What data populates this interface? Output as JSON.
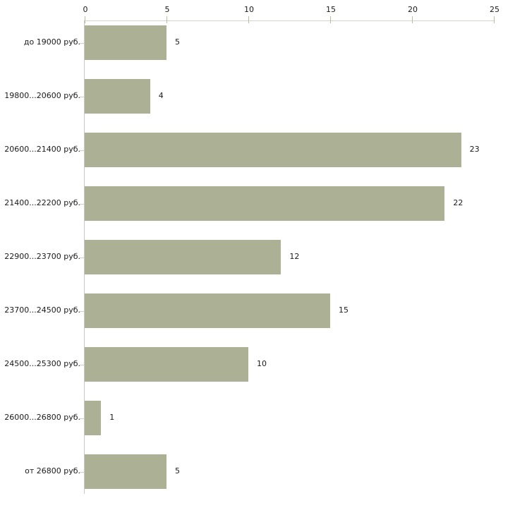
{
  "chart_data": {
    "type": "bar",
    "orientation": "horizontal",
    "title": "",
    "xlabel": "",
    "ylabel": "",
    "categories": [
      "до 19000 руб.",
      "19800...20600 руб.",
      "20600...21400 руб.",
      "21400...22200 руб.",
      "22900...23700 руб.",
      "23700...24500 руб.",
      "24500...25300 руб.",
      "26000...26800 руб.",
      "от 26800 руб."
    ],
    "values": [
      5,
      4,
      23,
      22,
      12,
      15,
      10,
      1,
      5
    ],
    "value_labels": [
      "5",
      "4",
      "23",
      "22",
      "12",
      "15",
      "10",
      "1",
      "5"
    ],
    "x_ticks": [
      "0",
      "5",
      "10",
      "15",
      "20",
      "25"
    ],
    "xlim": [
      0,
      25
    ],
    "grid": false,
    "legend": false,
    "axis_position": "top",
    "colors": {
      "bar_fill": "#acb195",
      "x_axis_line": "#d2d5c5",
      "x_tick": "#b9bc9c",
      "y_axis_line": "#c8c8c8",
      "y_tick": "#d5cbc5",
      "text": "#1a1a1a",
      "background": "#ffffff"
    }
  }
}
